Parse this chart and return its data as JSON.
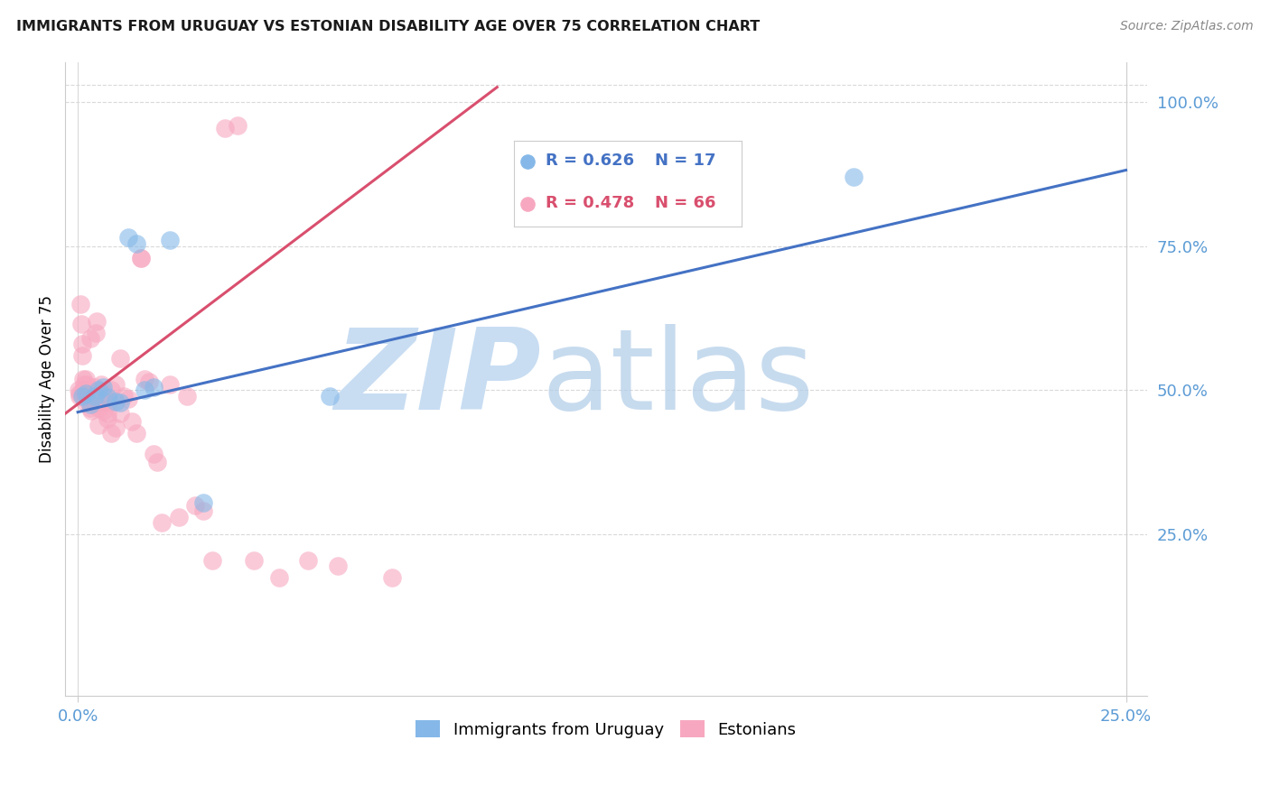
{
  "title": "IMMIGRANTS FROM URUGUAY VS ESTONIAN DISABILITY AGE OVER 75 CORRELATION CHART",
  "source": "Source: ZipAtlas.com",
  "ylabel": "Disability Age Over 75",
  "legend_blue_r": "0.626",
  "legend_blue_n": "17",
  "legend_pink_r": "0.478",
  "legend_pink_n": "66",
  "legend_label_blue": "Immigrants from Uruguay",
  "legend_label_pink": "Estonians",
  "blue_color": "#85b8e8",
  "pink_color": "#f7a8c0",
  "line_blue_color": "#4472c4",
  "line_pink_color": "#d94f6e",
  "watermark_zip": "ZIP",
  "watermark_atlas": "atlas",
  "watermark_color": "#c8ddf2",
  "axis_tick_color": "#5b9bd5",
  "grid_color": "#d9d9d9",
  "xlim_min": 0.0,
  "xlim_max": 0.25,
  "ylim_min": 0.0,
  "ylim_max": 1.05,
  "blue_x": [
    0.001,
    0.002,
    0.003,
    0.004,
    0.005,
    0.006,
    0.007,
    0.009,
    0.01,
    0.012,
    0.014,
    0.016,
    0.018,
    0.022,
    0.03,
    0.06,
    0.185
  ],
  "blue_y": [
    0.49,
    0.495,
    0.475,
    0.49,
    0.5,
    0.505,
    0.488,
    0.48,
    0.478,
    0.765,
    0.755,
    0.5,
    0.505,
    0.76,
    0.305,
    0.49,
    0.87
  ],
  "pink_x": [
    0.0002,
    0.0003,
    0.0005,
    0.0006,
    0.0008,
    0.001,
    0.001,
    0.0012,
    0.0013,
    0.0015,
    0.0016,
    0.0018,
    0.002,
    0.002,
    0.0022,
    0.0025,
    0.0028,
    0.003,
    0.003,
    0.003,
    0.0032,
    0.0035,
    0.004,
    0.004,
    0.0042,
    0.0045,
    0.005,
    0.005,
    0.0052,
    0.0055,
    0.006,
    0.006,
    0.0062,
    0.007,
    0.007,
    0.0075,
    0.008,
    0.008,
    0.009,
    0.009,
    0.01,
    0.01,
    0.011,
    0.012,
    0.013,
    0.014,
    0.015,
    0.015,
    0.016,
    0.017,
    0.018,
    0.019,
    0.02,
    0.022,
    0.024,
    0.026,
    0.028,
    0.03,
    0.032,
    0.035,
    0.038,
    0.042,
    0.048,
    0.055,
    0.062,
    0.075
  ],
  "pink_y": [
    0.5,
    0.49,
    0.495,
    0.65,
    0.615,
    0.58,
    0.56,
    0.5,
    0.52,
    0.51,
    0.48,
    0.49,
    0.52,
    0.5,
    0.51,
    0.48,
    0.49,
    0.5,
    0.59,
    0.47,
    0.465,
    0.48,
    0.505,
    0.49,
    0.6,
    0.62,
    0.47,
    0.44,
    0.48,
    0.51,
    0.465,
    0.48,
    0.495,
    0.46,
    0.45,
    0.48,
    0.425,
    0.5,
    0.435,
    0.51,
    0.46,
    0.555,
    0.49,
    0.485,
    0.445,
    0.425,
    0.73,
    0.73,
    0.52,
    0.515,
    0.39,
    0.375,
    0.27,
    0.51,
    0.28,
    0.49,
    0.3,
    0.29,
    0.205,
    0.955,
    0.96,
    0.205,
    0.175,
    0.205,
    0.195,
    0.175
  ],
  "blue_line_x": [
    0.0,
    0.25
  ],
  "blue_line_y_intercept": 0.462,
  "blue_line_slope": 1.68,
  "pink_line_x_start": -0.003,
  "pink_line_x_end": 0.1,
  "pink_line_y_intercept": 0.476,
  "pink_line_slope": 5.5
}
